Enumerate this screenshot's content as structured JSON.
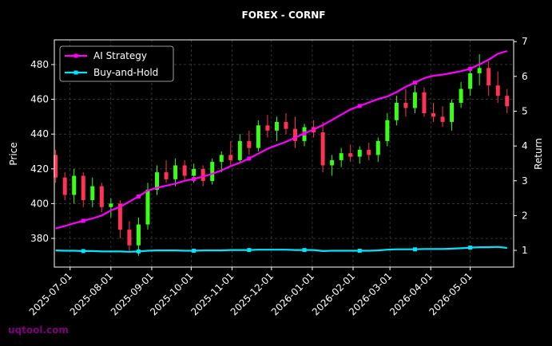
{
  "chart_data": {
    "type": "candlestick",
    "title": "FOREX - CORNF",
    "ylabel": "Price",
    "y2label": "Return",
    "watermark": "uqtool.com",
    "x": [
      "2025-06-20",
      "2025-06-27",
      "2025-07-04",
      "2025-07-11",
      "2025-07-18",
      "2025-07-25",
      "2025-08-01",
      "2025-08-08",
      "2025-08-15",
      "2025-08-22",
      "2025-08-29",
      "2025-09-05",
      "2025-09-12",
      "2025-09-19",
      "2025-09-26",
      "2025-10-03",
      "2025-10-10",
      "2025-10-17",
      "2025-10-24",
      "2025-10-31",
      "2025-11-07",
      "2025-11-14",
      "2025-11-21",
      "2025-11-28",
      "2025-12-05",
      "2025-12-12",
      "2025-12-19",
      "2025-12-26",
      "2026-01-02",
      "2026-01-09",
      "2026-01-16",
      "2026-01-23",
      "2026-01-30",
      "2026-02-06",
      "2026-02-13",
      "2026-02-20",
      "2026-02-27",
      "2026-03-06",
      "2026-03-13",
      "2026-03-20",
      "2026-03-27",
      "2026-04-03",
      "2026-04-10",
      "2026-04-17",
      "2026-04-24",
      "2026-05-01",
      "2026-05-08",
      "2026-05-15",
      "2026-05-22",
      "2026-05-29"
    ],
    "open": [
      428,
      415,
      405,
      416,
      402,
      410,
      398,
      400,
      385,
      376,
      388,
      408,
      418,
      414,
      422,
      416,
      420,
      413,
      424,
      428,
      425,
      436,
      432,
      445,
      442,
      447,
      443,
      436,
      444,
      441,
      422,
      425,
      429,
      427,
      431,
      428,
      436,
      448,
      458,
      455,
      464,
      452,
      450,
      447,
      458,
      466,
      475,
      478,
      468,
      462
    ],
    "high": [
      431,
      418,
      420,
      418,
      415,
      412,
      403,
      402,
      390,
      392,
      412,
      422,
      425,
      426,
      425,
      423,
      422,
      426,
      430,
      436,
      440,
      442,
      448,
      451,
      450,
      452,
      450,
      446,
      448,
      447,
      428,
      432,
      434,
      433,
      435,
      438,
      452,
      462,
      466,
      468,
      467,
      458,
      456,
      460,
      470,
      478,
      486,
      482,
      476,
      466
    ],
    "low": [
      412,
      402,
      400,
      398,
      398,
      395,
      392,
      380,
      372,
      370,
      385,
      405,
      412,
      410,
      413,
      412,
      410,
      411,
      418,
      422,
      423,
      428,
      430,
      438,
      436,
      440,
      432,
      433,
      438,
      418,
      416,
      421,
      424,
      423,
      425,
      424,
      433,
      445,
      450,
      452,
      450,
      447,
      444,
      442,
      455,
      462,
      468,
      462,
      458,
      452
    ],
    "close": [
      415,
      405,
      416,
      402,
      410,
      398,
      400,
      385,
      376,
      388,
      408,
      418,
      414,
      422,
      416,
      420,
      413,
      424,
      428,
      425,
      436,
      432,
      445,
      442,
      447,
      443,
      436,
      444,
      441,
      422,
      425,
      429,
      427,
      431,
      428,
      436,
      448,
      458,
      455,
      464,
      452,
      450,
      447,
      458,
      466,
      475,
      478,
      468,
      462,
      456
    ],
    "up_color": "#39ff14",
    "down_color": "#ff3355",
    "series": [
      {
        "name": "AI Strategy",
        "color": "#ff00ff",
        "axis": "y2",
        "values": [
          1.63,
          1.7,
          1.78,
          1.85,
          1.92,
          2.0,
          2.15,
          2.25,
          2.4,
          2.55,
          2.72,
          2.8,
          2.86,
          2.92,
          3.0,
          3.05,
          3.12,
          3.2,
          3.3,
          3.42,
          3.52,
          3.64,
          3.78,
          3.92,
          4.02,
          4.12,
          4.24,
          4.36,
          4.48,
          4.6,
          4.75,
          4.9,
          5.05,
          5.15,
          5.25,
          5.35,
          5.42,
          5.55,
          5.7,
          5.82,
          5.95,
          6.02,
          6.05,
          6.1,
          6.15,
          6.22,
          6.35,
          6.48,
          6.65,
          6.73
        ]
      },
      {
        "name": "Buy-and-Hold",
        "color": "#00e5ff",
        "axis": "y2",
        "values": [
          1.0,
          0.99,
          0.99,
          0.98,
          0.98,
          0.97,
          0.97,
          0.97,
          0.96,
          0.97,
          0.99,
          1.0,
          1.0,
          1.0,
          0.99,
          0.99,
          1.0,
          1.0,
          1.0,
          1.01,
          1.01,
          1.01,
          1.02,
          1.02,
          1.02,
          1.02,
          1.01,
          1.01,
          1.01,
          0.98,
          0.99,
          0.99,
          0.99,
          0.99,
          0.99,
          1.0,
          1.02,
          1.03,
          1.03,
          1.03,
          1.04,
          1.04,
          1.04,
          1.05,
          1.06,
          1.08,
          1.09,
          1.09,
          1.1,
          1.07
        ]
      }
    ],
    "xlim": [
      "2025-06-19",
      "2026-06-03"
    ],
    "xticks": [
      "2025-07-01",
      "2025-08-01",
      "2025-09-01",
      "2025-10-01",
      "2025-11-01",
      "2025-12-01",
      "2026-01-01",
      "2026-02-01",
      "2026-03-01",
      "2026-04-01",
      "2026-05-01"
    ],
    "ylim": [
      363.5,
      494.2
    ],
    "yticks": [
      380,
      400,
      420,
      440,
      460,
      480
    ],
    "y2lim": [
      0.52,
      7.05
    ],
    "y2ticks": [
      1,
      2,
      3,
      4,
      5,
      6,
      7
    ],
    "grid": true,
    "legend": "upper left"
  }
}
